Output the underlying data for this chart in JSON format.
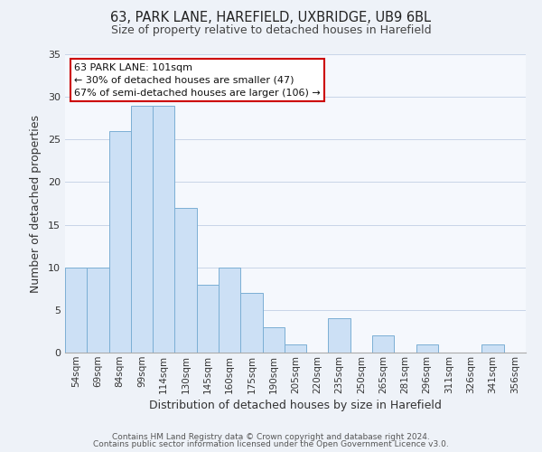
{
  "title_line1": "63, PARK LANE, HAREFIELD, UXBRIDGE, UB9 6BL",
  "title_line2": "Size of property relative to detached houses in Harefield",
  "xlabel": "Distribution of detached houses by size in Harefield",
  "ylabel": "Number of detached properties",
  "bin_labels": [
    "54sqm",
    "69sqm",
    "84sqm",
    "99sqm",
    "114sqm",
    "130sqm",
    "145sqm",
    "160sqm",
    "175sqm",
    "190sqm",
    "205sqm",
    "220sqm",
    "235sqm",
    "250sqm",
    "265sqm",
    "281sqm",
    "296sqm",
    "311sqm",
    "326sqm",
    "341sqm",
    "356sqm"
  ],
  "bar_values": [
    10,
    10,
    26,
    29,
    29,
    17,
    8,
    10,
    7,
    3,
    1,
    0,
    4,
    0,
    2,
    0,
    1,
    0,
    0,
    1,
    0
  ],
  "bar_color": "#cce0f5",
  "bar_edge_color": "#7bafd4",
  "ylim": [
    0,
    35
  ],
  "yticks": [
    0,
    5,
    10,
    15,
    20,
    25,
    30,
    35
  ],
  "annotation_title": "63 PARK LANE: 101sqm",
  "annotation_line1": "← 30% of detached houses are smaller (47)",
  "annotation_line2": "67% of semi-detached houses are larger (106) →",
  "annotation_box_facecolor": "#ffffff",
  "annotation_box_edgecolor": "#cc0000",
  "footnote1": "Contains HM Land Registry data © Crown copyright and database right 2024.",
  "footnote2": "Contains public sector information licensed under the Open Government Licence v3.0.",
  "bg_color": "#eef2f8",
  "plot_bg_color": "#f5f8fd",
  "grid_color": "#c8d4e8",
  "title1_fontsize": 10.5,
  "title2_fontsize": 9,
  "xlabel_fontsize": 9,
  "ylabel_fontsize": 9,
  "tick_fontsize": 7.5,
  "annot_fontsize": 8,
  "footnote_fontsize": 6.5
}
